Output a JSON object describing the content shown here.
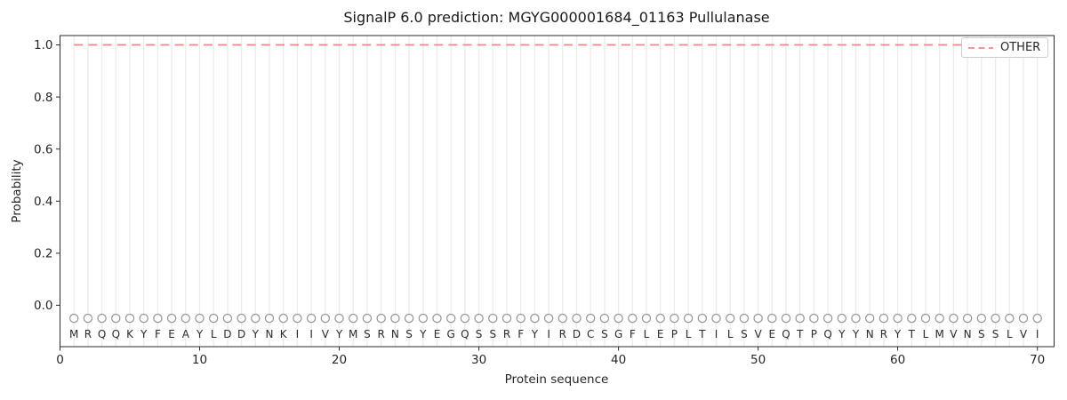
{
  "figure": {
    "title": "SignalP 6.0 prediction: MGYG000001684_01163 Pullulanase",
    "xlabel": "Protein sequence",
    "ylabel": "Probability"
  },
  "legend": {
    "position": "upper right",
    "entries": [
      {
        "label": "OTHER",
        "color": "#ee8889",
        "linestyle": "dashed"
      }
    ]
  },
  "colors": {
    "other_line": "#ee8889",
    "grid": "#ececec",
    "marker_edge": "#949494",
    "marker_face": "#ffffff",
    "spine": "#2b2b2b",
    "text": "#262626",
    "sequence_text": "#2b2b2b",
    "legend_border": "#cccccc",
    "background": "#ffffff"
  },
  "chart_data": {
    "type": "line",
    "title": "SignalP 6.0 prediction: MGYG000001684_01163 Pullulanase",
    "xlabel": "Protein sequence",
    "ylabel": "Probability",
    "xlim": [
      0,
      71.2
    ],
    "ylim": [
      -0.159,
      1.036
    ],
    "x_ticks": [
      0,
      10,
      20,
      30,
      40,
      50,
      60,
      70
    ],
    "y_ticks": [
      0.0,
      0.2,
      0.4,
      0.6,
      0.8,
      1.0
    ],
    "grid": "vertical gridline at every residue position",
    "legend_position": "upper right",
    "sequence": "MRQQKYFEAYLDDYNKIIVYMSRNSYEGQSSRFYIRDCSGFLEPLTILSVEQTPQYYNRYTLMVNSSLVI",
    "series": [
      {
        "name": "OTHER",
        "linestyle": "dashed",
        "color": "#ee8889",
        "x_start": 1,
        "x_end": 70,
        "n_points": 70,
        "constant_value": 1.0
      }
    ],
    "residue_markers": {
      "symbol": "open-circle",
      "y": -0.05
    }
  }
}
